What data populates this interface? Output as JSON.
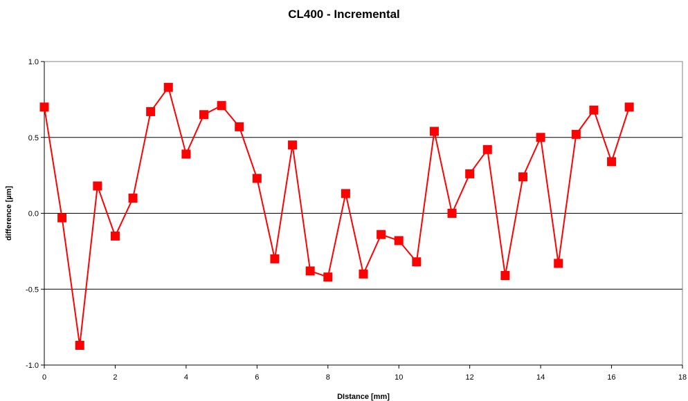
{
  "chart_data": {
    "type": "line",
    "title": "CL400 - Incremental",
    "xlabel": "DIstance [mm]",
    "ylabel": "difference [µm]",
    "xlim": [
      0,
      18
    ],
    "ylim": [
      -1.0,
      1.0
    ],
    "xticks": [
      0,
      2,
      4,
      6,
      8,
      10,
      12,
      14,
      16,
      18
    ],
    "yticks": [
      -1.0,
      -0.5,
      0.0,
      0.5,
      1.0
    ],
    "ytick_labels": [
      "-1.0",
      "-0.5",
      "0.0",
      "0.5",
      "1.0"
    ],
    "grid": "horizontal",
    "colors": {
      "series": "#ff0000",
      "plot_border": "#808080",
      "grid": "#000000"
    },
    "series": [
      {
        "x": [
          0,
          0.5,
          1,
          1.5,
          2,
          2.5,
          3,
          3.5,
          4,
          4.5,
          5,
          5.5,
          6,
          6.5,
          7,
          7.5,
          8,
          8.5,
          9,
          9.5,
          10,
          10.5,
          11,
          11.5,
          12,
          12.5,
          13,
          13.5,
          14,
          14.5,
          15,
          15.5,
          16,
          16.5
        ],
        "y": [
          0.7,
          -0.03,
          -0.87,
          0.18,
          -0.15,
          0.1,
          0.67,
          0.83,
          0.39,
          0.65,
          0.71,
          0.57,
          0.23,
          -0.3,
          0.45,
          -0.38,
          -0.42,
          0.13,
          -0.4,
          -0.14,
          -0.18,
          -0.32,
          0.54,
          0.0,
          0.26,
          0.42,
          -0.41,
          0.24,
          0.5,
          -0.33,
          0.52,
          0.68,
          0.34,
          0.7
        ]
      }
    ]
  }
}
